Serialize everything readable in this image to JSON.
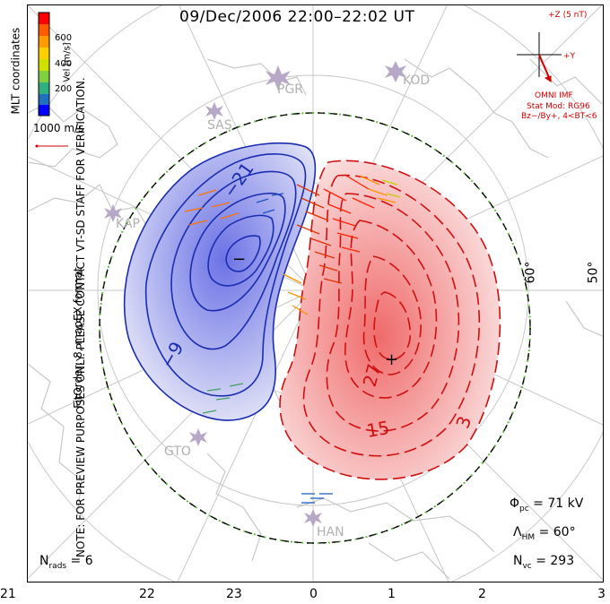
{
  "title": "09/Dec/2006  22:00–22:02  UT",
  "side_note_line1": "NOTE: FOR PREVIEW PURPOSES ONLY. PLEASE CONTACT VT-SD STAFF FOR VERIFICATION.",
  "side_note_line2": "FitOrder: 8, mapEX format",
  "coord_system": "MLT coordinates",
  "colorbar": {
    "label": "Vel [m/s]",
    "ticks": [
      "600",
      "400",
      "200"
    ],
    "colors": [
      "#ff0000",
      "#ff5a00",
      "#ff9a00",
      "#ffd000",
      "#d0e000",
      "#80d040",
      "#30b080",
      "#2070c0",
      "#0000ff"
    ]
  },
  "reference_vector": "1000 m/s",
  "imf": {
    "bz_label": "+Z (5 nT)",
    "by_label": "+Y",
    "source": "OMNI IMF",
    "model_line1": "Stat Mod: RG96",
    "model_line2": "Bz−/By+, 4<BT<6"
  },
  "stats": {
    "phi_pc_symbol": "Φ",
    "phi_pc_sub": "pc",
    "phi_pc_value": " = 71 kV",
    "lambda_symbol": "Λ",
    "lambda_sub": "HM",
    "lambda_value": " = 60°",
    "nvc_symbol": "N",
    "nvc_sub": "vc",
    "nvc_value": " = 293",
    "nrads_symbol": "N",
    "nrads_sub": "rads",
    "nrads_value": " = 6"
  },
  "mlt_ticks": [
    "21",
    "22",
    "23",
    "0",
    "1",
    "2",
    "3"
  ],
  "latitude_labels": [
    "60°",
    "50°"
  ],
  "stations": [
    "PGR",
    "KOD",
    "SAS",
    "KAP",
    "GTO",
    "HAN"
  ],
  "potential_labels": {
    "neg_max": "−",
    "pos_max": "+",
    "neg_contours": [
      "−21",
      "−9"
    ],
    "pos_contours": [
      "27",
      "15",
      "3"
    ]
  },
  "contour_colors": {
    "negative": "#1a2db0",
    "positive": "#d01010",
    "boundary_dash": "#60c040"
  }
}
